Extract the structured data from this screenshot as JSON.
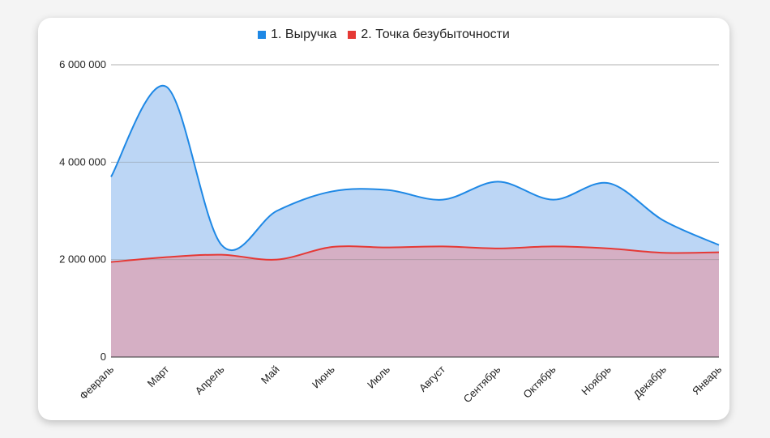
{
  "chart_data": {
    "type": "area",
    "categories": [
      "Февраль",
      "Март",
      "Апрель",
      "Май",
      "Июнь",
      "Июль",
      "Август",
      "Сентябрь",
      "Октябрь",
      "Ноябрь",
      "Декабрь",
      "Январь"
    ],
    "series": [
      {
        "name": "1. Выручка",
        "color": "#1e88e5",
        "fill": "#bcd6f5",
        "values": [
          3700000,
          5550000,
          2300000,
          3000000,
          3400000,
          3430000,
          3230000,
          3600000,
          3230000,
          3570000,
          2800000,
          2300000
        ]
      },
      {
        "name": "2. Точка безубыточности",
        "color": "#e53935",
        "fill": "#d5afc4",
        "values": [
          1950000,
          2050000,
          2100000,
          2000000,
          2260000,
          2250000,
          2270000,
          2230000,
          2270000,
          2230000,
          2140000,
          2150000
        ]
      }
    ],
    "ylim": [
      0,
      6000000
    ],
    "yticks": [
      0,
      2000000,
      4000000,
      6000000
    ],
    "ytick_labels": [
      "0",
      "2 000 000",
      "4 000 000",
      "6 000 000"
    ],
    "grid": true,
    "legend_position": "top-center"
  }
}
